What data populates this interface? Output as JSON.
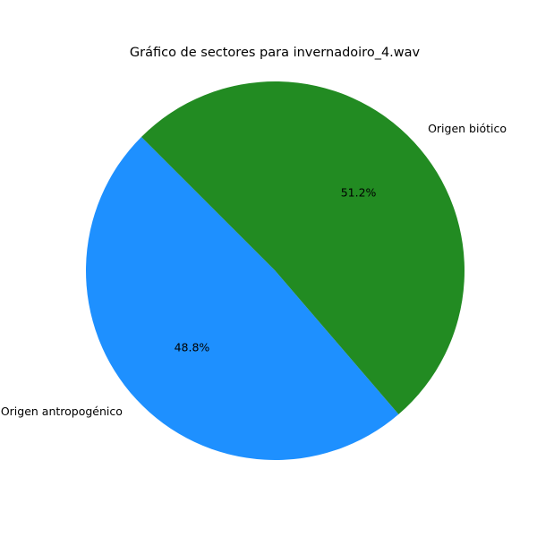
{
  "chart_data": {
    "type": "pie",
    "title": "Gráfico de sectores para invernadoiro_4.wav",
    "slices": [
      {
        "label": "Origen antropogénico",
        "value": 48.8,
        "pct_label": "48.8%",
        "color": "#1e90ff"
      },
      {
        "label": "Origen biótico",
        "value": 51.2,
        "pct_label": "51.2%",
        "color": "#228b22"
      }
    ],
    "legend": "none"
  }
}
